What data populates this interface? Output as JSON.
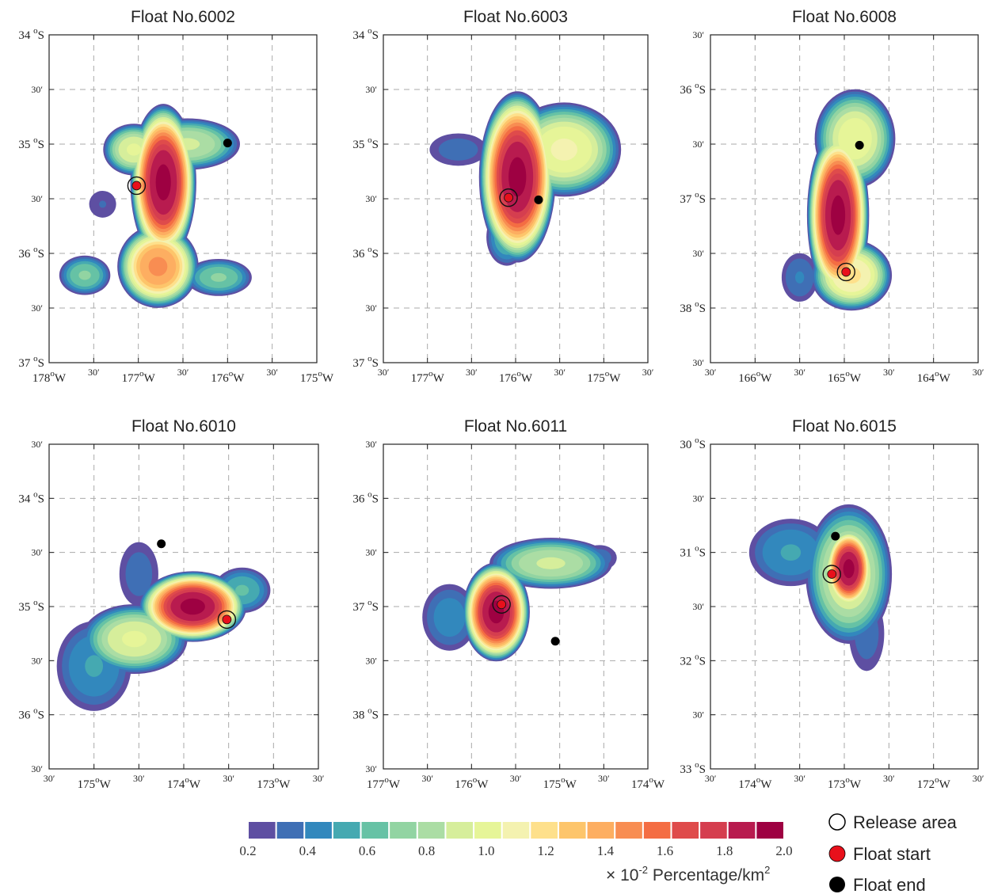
{
  "chart_data": {
    "type": "heatmap",
    "colorbar": {
      "ticks": [
        "0.2",
        "0.4",
        "0.6",
        "0.8",
        "1.0",
        "1.2",
        "1.4",
        "1.6",
        "1.8",
        "2.0"
      ],
      "levels": [
        0.2,
        0.3,
        0.4,
        0.5,
        0.6,
        0.7,
        0.8,
        0.9,
        1.0,
        1.1,
        1.2,
        1.3,
        1.4,
        1.5,
        1.6,
        1.7,
        1.8,
        1.9,
        2.0
      ],
      "colors": [
        "#5e4fa2",
        "#3f6fb5",
        "#3288bd",
        "#45a9b1",
        "#66c2a5",
        "#92d4a2",
        "#abdda4",
        "#d6ee9b",
        "#e6f598",
        "#f4f2b0",
        "#fee08b",
        "#fdc56b",
        "#fdae61",
        "#f88d52",
        "#f46d43",
        "#df4b4b",
        "#d53e4f",
        "#b81b4f",
        "#9e0142"
      ],
      "unit_prefix": "× 10",
      "unit_exp": "-2",
      "unit_text": " Percentage/km",
      "unit_sup": "2"
    },
    "legend": {
      "release": "Release area",
      "start": "Float start",
      "end": "Float end"
    },
    "panels": [
      {
        "title": "Float No.6002",
        "xticks": [
          {
            "v": -178,
            "deg": "178",
            "unit": "W"
          },
          {
            "v": -177.5,
            "min": "30′"
          },
          {
            "v": -177,
            "deg": "177",
            "unit": "W"
          },
          {
            "v": -176.5,
            "min": "30′"
          },
          {
            "v": -176,
            "deg": "176",
            "unit": "W"
          },
          {
            "v": -175.5,
            "min": "30′"
          },
          {
            "v": -175,
            "deg": "175",
            "unit": "W"
          }
        ],
        "yticks": [
          {
            "v": -34,
            "deg": "34",
            "unit": "S"
          },
          {
            "v": -34.5,
            "min": "30′"
          },
          {
            "v": -35,
            "deg": "35",
            "unit": "S"
          },
          {
            "v": -35.5,
            "min": "30′"
          },
          {
            "v": -36,
            "deg": "36",
            "unit": "S"
          },
          {
            "v": -36.5,
            "min": "30′"
          },
          {
            "v": -37,
            "deg": "37",
            "unit": "S"
          }
        ],
        "xlim": [
          -178,
          -175
        ],
        "ylim": [
          -37,
          -34
        ],
        "release": [
          -177.02,
          -35.38
        ],
        "start": [
          -177.02,
          -35.38
        ],
        "end": [
          -176.0,
          -34.99
        ],
        "blobs": [
          {
            "cx": -176.72,
            "cy": -35.35,
            "rx": 0.34,
            "ry": 0.66,
            "peak": 2.0
          },
          {
            "cx": -176.45,
            "cy": -35.0,
            "rx": 0.55,
            "ry": 0.22,
            "peak": 0.9
          },
          {
            "cx": -177.05,
            "cy": -35.05,
            "rx": 0.32,
            "ry": 0.22,
            "peak": 1.0
          },
          {
            "cx": -176.78,
            "cy": -36.12,
            "rx": 0.42,
            "ry": 0.35,
            "peak": 1.5
          },
          {
            "cx": -176.1,
            "cy": -36.22,
            "rx": 0.35,
            "ry": 0.16,
            "peak": 0.7
          },
          {
            "cx": -177.6,
            "cy": -36.2,
            "rx": 0.27,
            "ry": 0.17,
            "peak": 0.7
          },
          {
            "cx": -177.4,
            "cy": -35.55,
            "rx": 0.16,
            "ry": 0.13,
            "peak": 0.3
          }
        ]
      },
      {
        "title": "Float No.6003",
        "xticks": [
          {
            "v": -177.5,
            "min": "30′"
          },
          {
            "v": -177,
            "deg": "177",
            "unit": "W"
          },
          {
            "v": -176.5,
            "min": "30′"
          },
          {
            "v": -176,
            "deg": "176",
            "unit": "W"
          },
          {
            "v": -175.5,
            "min": "30′"
          },
          {
            "v": -175,
            "deg": "175",
            "unit": "W"
          },
          {
            "v": -174.5,
            "min": "30′"
          }
        ],
        "yticks": [
          {
            "v": -34,
            "deg": "34",
            "unit": "S"
          },
          {
            "v": -34.5,
            "min": "30′"
          },
          {
            "v": -35,
            "deg": "35",
            "unit": "S"
          },
          {
            "v": -35.5,
            "min": "30′"
          },
          {
            "v": -36,
            "deg": "36",
            "unit": "S"
          },
          {
            "v": -36.5,
            "min": "30′"
          },
          {
            "v": -37,
            "deg": "37",
            "unit": "S"
          }
        ],
        "xlim": [
          -177.5,
          -174.5
        ],
        "ylim": [
          -37,
          -34
        ],
        "release": [
          -176.08,
          -35.49
        ],
        "start": [
          -176.08,
          -35.49
        ],
        "end": [
          -175.74,
          -35.51
        ],
        "blobs": [
          {
            "cx": -175.98,
            "cy": -35.3,
            "rx": 0.4,
            "ry": 0.72,
            "peak": 2.0
          },
          {
            "cx": -175.45,
            "cy": -35.05,
            "rx": 0.6,
            "ry": 0.4,
            "peak": 1.1
          },
          {
            "cx": -176.65,
            "cy": -35.05,
            "rx": 0.33,
            "ry": 0.15,
            "peak": 0.35
          },
          {
            "cx": -176.1,
            "cy": -35.85,
            "rx": 0.22,
            "ry": 0.25,
            "peak": 0.6
          }
        ]
      },
      {
        "title": "Float No.6008",
        "xticks": [
          {
            "v": -166.5,
            "min": "30′"
          },
          {
            "v": -166,
            "deg": "166",
            "unit": "W"
          },
          {
            "v": -165.5,
            "min": "30′"
          },
          {
            "v": -165,
            "deg": "165",
            "unit": "W"
          },
          {
            "v": -164.5,
            "min": "30′"
          },
          {
            "v": -164,
            "deg": "164",
            "unit": "W"
          },
          {
            "v": -163.5,
            "min": "30′"
          }
        ],
        "yticks": [
          {
            "v": -35.5,
            "min": "30′"
          },
          {
            "v": -36,
            "deg": "36",
            "unit": "S"
          },
          {
            "v": -36.5,
            "min": "30′"
          },
          {
            "v": -37,
            "deg": "37",
            "unit": "S"
          },
          {
            "v": -37.5,
            "min": "30′"
          },
          {
            "v": -38,
            "deg": "38",
            "unit": "S"
          },
          {
            "v": -38.5,
            "min": "30′"
          }
        ],
        "xlim": [
          -166.5,
          -163.5
        ],
        "ylim": [
          -38.5,
          -35.5
        ],
        "release": [
          -164.98,
          -37.67
        ],
        "start": [
          -164.98,
          -37.67
        ],
        "end": [
          -164.83,
          -36.51
        ],
        "blobs": [
          {
            "cx": -165.07,
            "cy": -37.15,
            "rx": 0.32,
            "ry": 0.72,
            "peak": 2.0
          },
          {
            "cx": -164.88,
            "cy": -36.45,
            "rx": 0.42,
            "ry": 0.42,
            "peak": 1.05
          },
          {
            "cx": -164.92,
            "cy": -37.7,
            "rx": 0.42,
            "ry": 0.3,
            "peak": 1.2
          },
          {
            "cx": -165.5,
            "cy": -37.72,
            "rx": 0.2,
            "ry": 0.22,
            "peak": 0.4
          }
        ]
      },
      {
        "title": "Float No.6010",
        "xticks": [
          {
            "v": -175.5,
            "min": "30′"
          },
          {
            "v": -175,
            "deg": "175",
            "unit": "W"
          },
          {
            "v": -174.5,
            "min": "30′"
          },
          {
            "v": -174,
            "deg": "174",
            "unit": "W"
          },
          {
            "v": -173.5,
            "min": "30′"
          },
          {
            "v": -173,
            "deg": "173",
            "unit": "W"
          },
          {
            "v": -172.5,
            "min": "30′"
          }
        ],
        "yticks": [
          {
            "v": -33.5,
            "min": "30′"
          },
          {
            "v": -34,
            "deg": "34",
            "unit": "S"
          },
          {
            "v": -34.5,
            "min": "30′"
          },
          {
            "v": -35,
            "deg": "35",
            "unit": "S"
          },
          {
            "v": -35.5,
            "min": "30′"
          },
          {
            "v": -36,
            "deg": "36",
            "unit": "S"
          },
          {
            "v": -36.5,
            "min": "30′"
          }
        ],
        "xlim": [
          -175.5,
          -172.5
        ],
        "ylim": [
          -36.5,
          -33.5
        ],
        "release": [
          -173.52,
          -35.12
        ],
        "start": [
          -173.52,
          -35.12
        ],
        "end": [
          -174.25,
          -34.42
        ],
        "blobs": [
          {
            "cx": -173.9,
            "cy": -35.0,
            "rx": 0.55,
            "ry": 0.3,
            "peak": 2.0
          },
          {
            "cx": -174.55,
            "cy": -35.3,
            "rx": 0.55,
            "ry": 0.3,
            "peak": 1.0
          },
          {
            "cx": -175.0,
            "cy": -35.55,
            "rx": 0.4,
            "ry": 0.4,
            "peak": 0.5
          },
          {
            "cx": -174.5,
            "cy": -34.7,
            "rx": 0.22,
            "ry": 0.3,
            "peak": 0.35
          },
          {
            "cx": -173.35,
            "cy": -34.85,
            "rx": 0.3,
            "ry": 0.2,
            "peak": 0.6
          }
        ]
      },
      {
        "title": "Float No.6011",
        "xticks": [
          {
            "v": -177,
            "deg": "177",
            "unit": "W"
          },
          {
            "v": -176.5,
            "min": "30′"
          },
          {
            "v": -176,
            "deg": "176",
            "unit": "W"
          },
          {
            "v": -175.5,
            "min": "30′"
          },
          {
            "v": -175,
            "deg": "175",
            "unit": "W"
          },
          {
            "v": -174.5,
            "min": "30′"
          },
          {
            "v": -174,
            "deg": "174",
            "unit": "W"
          }
        ],
        "yticks": [
          {
            "v": -35.5,
            "min": "30′"
          },
          {
            "v": -36,
            "deg": "36",
            "unit": "S"
          },
          {
            "v": -36.5,
            "min": "30′"
          },
          {
            "v": -37,
            "deg": "37",
            "unit": "S"
          },
          {
            "v": -37.5,
            "min": "30′"
          },
          {
            "v": -38,
            "deg": "38",
            "unit": "S"
          },
          {
            "v": -38.5,
            "min": "30′"
          }
        ],
        "xlim": [
          -177,
          -174
        ],
        "ylim": [
          -38.5,
          -35.5
        ],
        "release": [
          -175.66,
          -36.98
        ],
        "start": [
          -175.66,
          -36.98
        ],
        "end": [
          -175.05,
          -37.32
        ],
        "blobs": [
          {
            "cx": -175.72,
            "cy": -37.05,
            "rx": 0.35,
            "ry": 0.42,
            "peak": 2.0
          },
          {
            "cx": -175.1,
            "cy": -36.6,
            "rx": 0.65,
            "ry": 0.22,
            "peak": 0.9
          },
          {
            "cx": -176.25,
            "cy": -37.1,
            "rx": 0.3,
            "ry": 0.3,
            "peak": 0.45
          },
          {
            "cx": -174.55,
            "cy": -36.55,
            "rx": 0.2,
            "ry": 0.12,
            "peak": 0.35
          }
        ]
      },
      {
        "title": "Float No.6015",
        "xticks": [
          {
            "v": -174.5,
            "min": "30′"
          },
          {
            "v": -174,
            "deg": "174",
            "unit": "W"
          },
          {
            "v": -173.5,
            "min": "30′"
          },
          {
            "v": -173,
            "deg": "173",
            "unit": "W"
          },
          {
            "v": -172.5,
            "min": "30′"
          },
          {
            "v": -172,
            "deg": "172",
            "unit": "W"
          },
          {
            "v": -171.5,
            "min": "30′"
          }
        ],
        "yticks": [
          {
            "v": -30,
            "deg": "30",
            "unit": "S"
          },
          {
            "v": -30.5,
            "min": "30′"
          },
          {
            "v": -31,
            "deg": "31",
            "unit": "S"
          },
          {
            "v": -31.5,
            "min": "30′"
          },
          {
            "v": -32,
            "deg": "32",
            "unit": "S"
          },
          {
            "v": -32.5,
            "min": "30′"
          },
          {
            "v": -33,
            "deg": "33",
            "unit": "S"
          }
        ],
        "xlim": [
          -174.5,
          -171.5
        ],
        "ylim": [
          -33,
          -30
        ],
        "release": [
          -173.14,
          -31.2
        ],
        "start": [
          -173.14,
          -31.2
        ],
        "end": [
          -173.1,
          -30.85
        ],
        "blobs": [
          {
            "cx": -172.95,
            "cy": -31.15,
            "rx": 0.25,
            "ry": 0.35,
            "peak": 2.0
          },
          {
            "cx": -172.95,
            "cy": -31.2,
            "rx": 0.45,
            "ry": 0.6,
            "peak": 1.0
          },
          {
            "cx": -173.6,
            "cy": -31.0,
            "rx": 0.45,
            "ry": 0.3,
            "peak": 0.5
          },
          {
            "cx": -172.75,
            "cy": -31.75,
            "rx": 0.2,
            "ry": 0.35,
            "peak": 0.35
          }
        ]
      }
    ]
  }
}
